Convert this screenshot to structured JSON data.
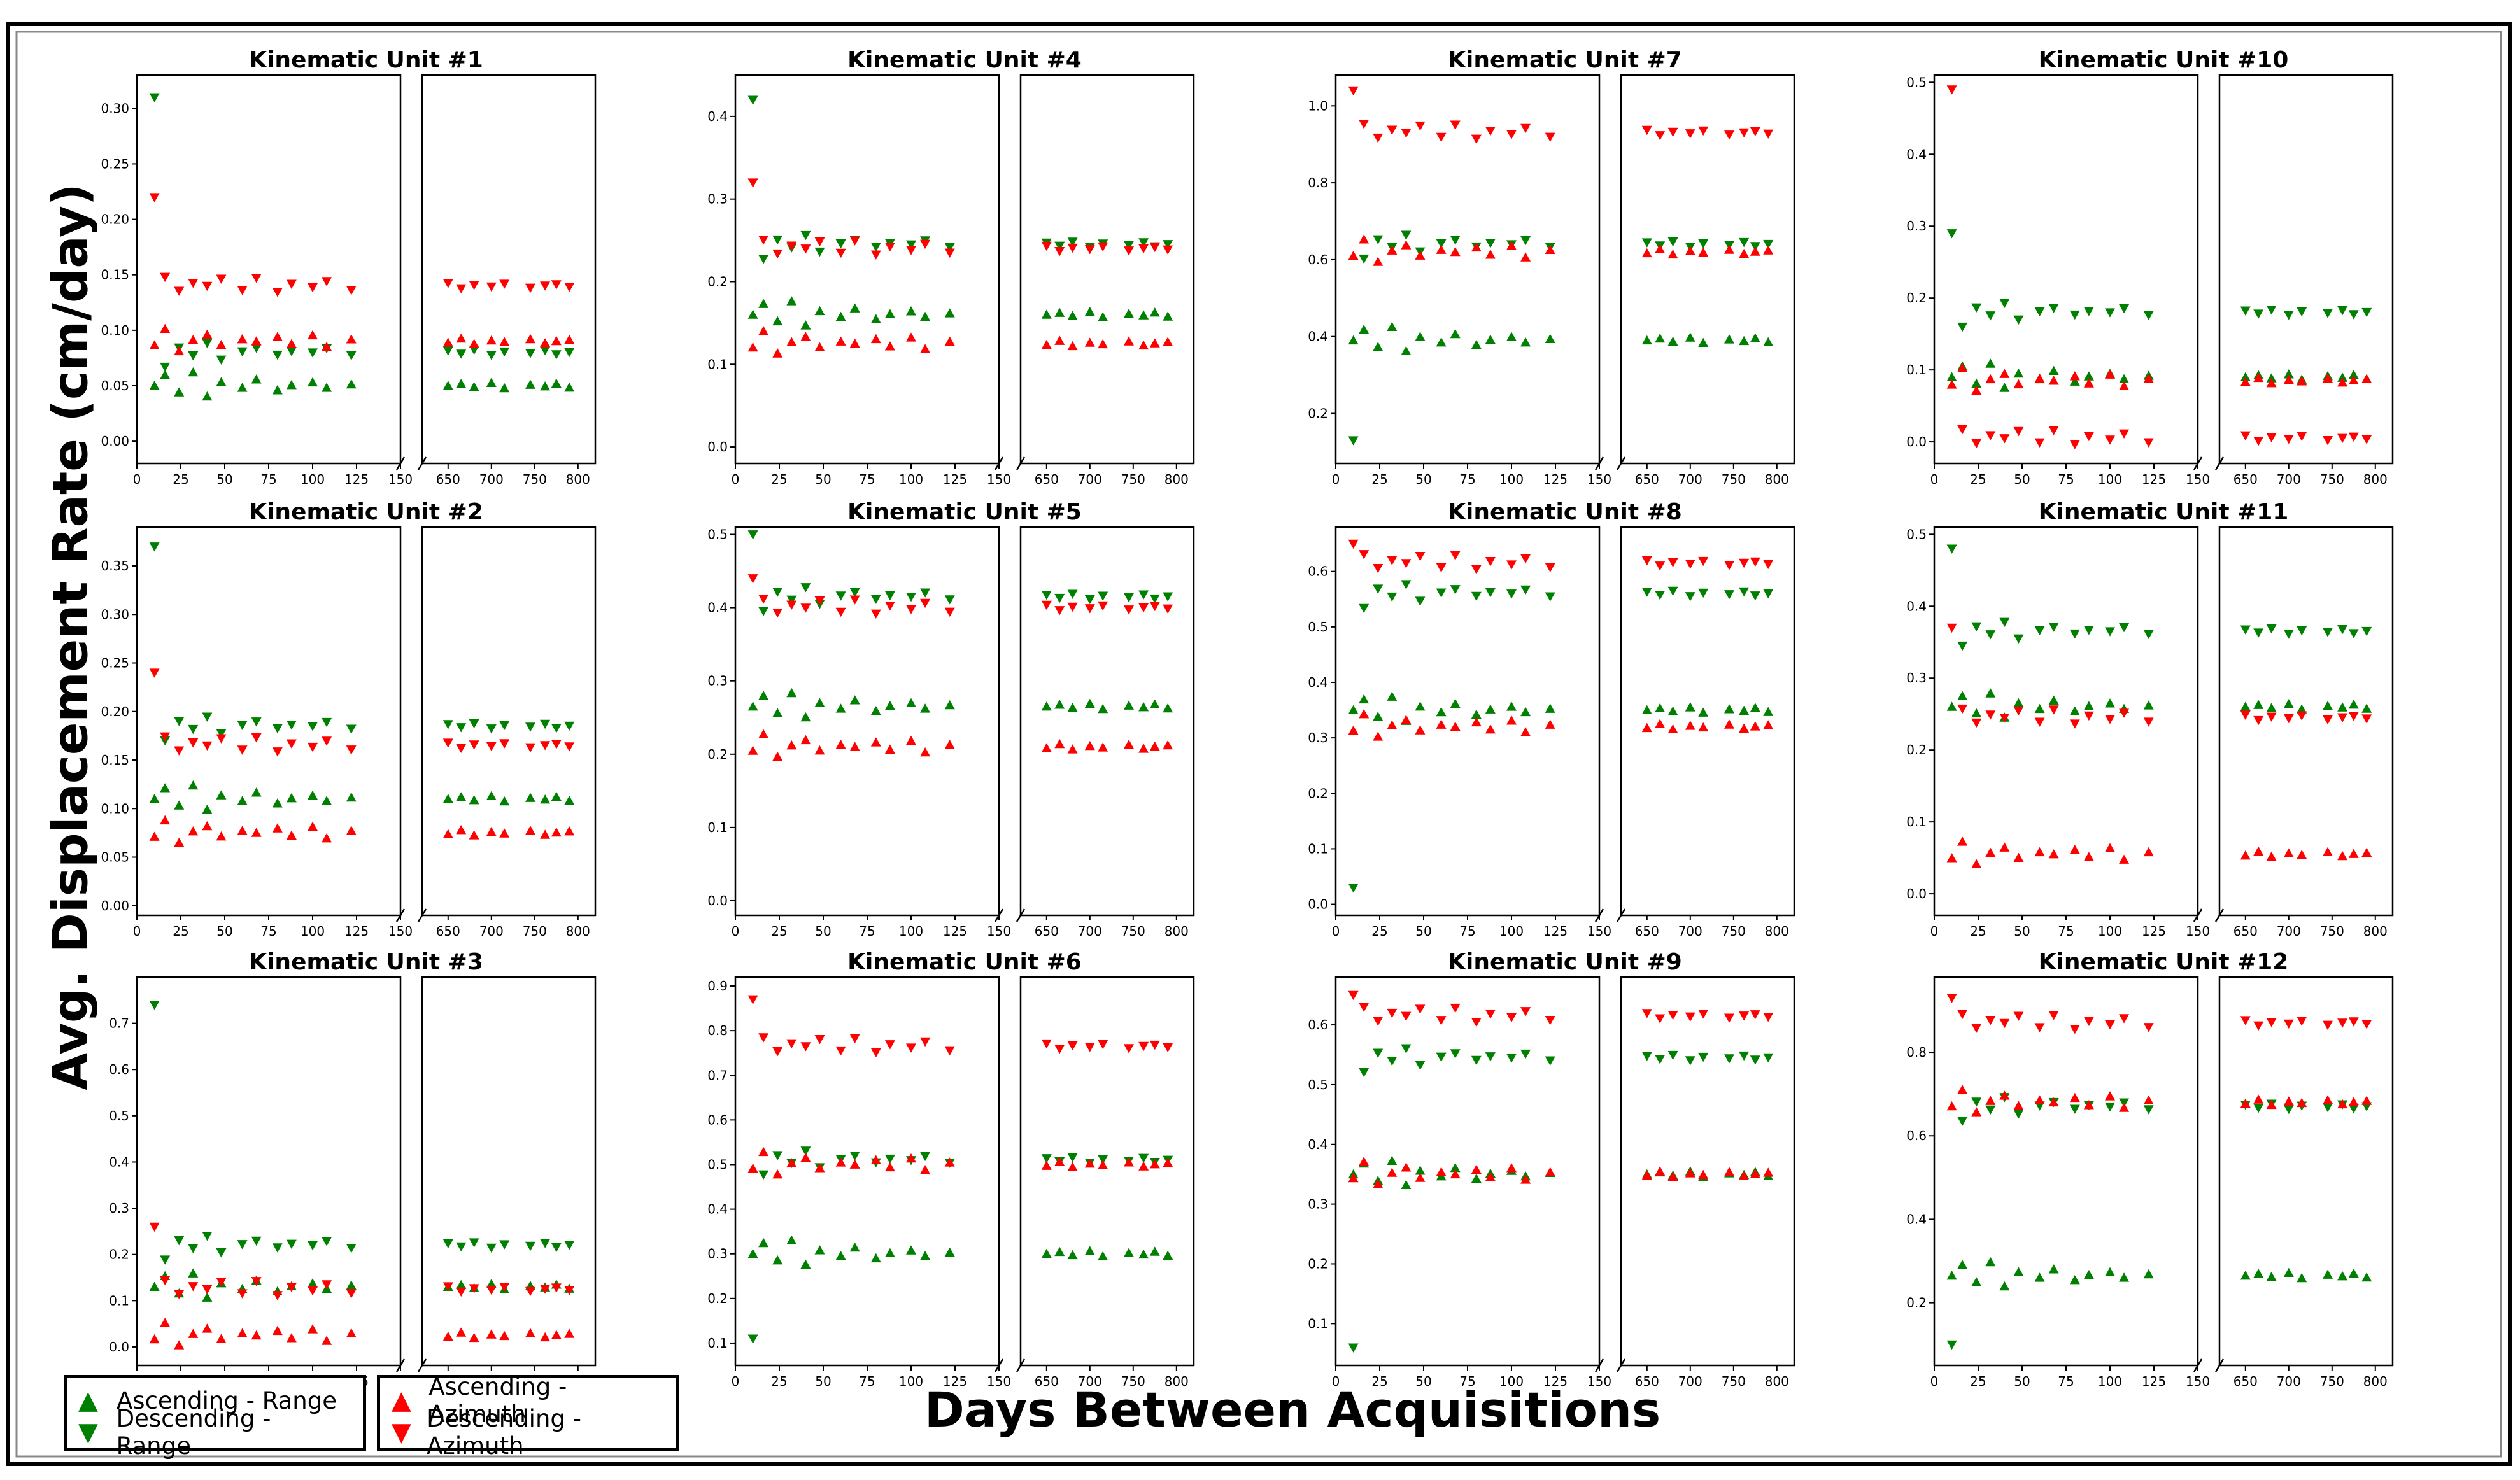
{
  "y_axis_title": "Avg. Displacement Rate (cm/day)",
  "x_axis_title": "Days Between Acquisitions",
  "colors": {
    "ascending_range": "#008000",
    "descending_range": "#008000",
    "ascending_azimuth": "#ff0000",
    "descending_azimuth": "#ff0000"
  },
  "legend": [
    {
      "label": "Ascending - Range",
      "symbol": "▲",
      "color": "#008000"
    },
    {
      "label": "Descending - Range",
      "symbol": "▼",
      "color": "#008000"
    },
    {
      "label": "Ascending - Azimuth",
      "symbol": "▲",
      "color": "#ff0000"
    },
    {
      "label": "Descending - Azimuth",
      "symbol": "▼",
      "color": "#ff0000"
    }
  ],
  "chart_data": [
    {
      "type": "scatter",
      "title": "Kinematic Unit #1",
      "x_ticks_left": [
        "0",
        "25",
        "50",
        "75",
        "100",
        "125",
        "150"
      ],
      "x_ticks_right": [
        "650",
        "700",
        "750",
        "800"
      ],
      "xlim_left": [
        0,
        150
      ],
      "xlim_right": [
        620,
        820
      ],
      "ylim": [
        -0.02,
        0.33
      ],
      "y_ticks": [
        "0.00",
        "0.05",
        "0.10",
        "0.15",
        "0.20",
        "0.25",
        "0.30"
      ],
      "levels": {
        "asc_range": 0.05,
        "desc_range": 0.08,
        "asc_azimuth": 0.09,
        "desc_azimuth": 0.14
      },
      "spikes": {
        "desc_range": 0.31,
        "desc_azimuth": 0.22
      }
    },
    {
      "type": "scatter",
      "title": "Kinematic Unit #4",
      "x_ticks_left": [
        "0",
        "25",
        "50",
        "75",
        "100",
        "125",
        "150"
      ],
      "x_ticks_right": [
        "650",
        "700",
        "750",
        "800"
      ],
      "xlim_left": [
        0,
        150
      ],
      "xlim_right": [
        620,
        820
      ],
      "ylim": [
        -0.02,
        0.45
      ],
      "y_ticks": [
        "0.0",
        "0.1",
        "0.2",
        "0.3",
        "0.4"
      ],
      "levels": {
        "asc_range": 0.16,
        "desc_range": 0.245,
        "asc_azimuth": 0.125,
        "desc_azimuth": 0.24
      },
      "spikes": {
        "desc_range": 0.42,
        "desc_azimuth": 0.32
      }
    },
    {
      "type": "scatter",
      "title": "Kinematic Unit #7",
      "x_ticks_left": [
        "0",
        "25",
        "50",
        "75",
        "100",
        "125",
        "150"
      ],
      "x_ticks_right": [
        "650",
        "700",
        "750",
        "800"
      ],
      "xlim_left": [
        0,
        150
      ],
      "xlim_right": [
        620,
        820
      ],
      "ylim": [
        0.07,
        1.08
      ],
      "y_ticks": [
        "0.2",
        "0.4",
        "0.6",
        "0.8",
        "1.0"
      ],
      "levels": {
        "asc_range": 0.39,
        "desc_range": 0.64,
        "asc_azimuth": 0.62,
        "desc_azimuth": 0.93
      },
      "spikes": {
        "desc_range": 0.13,
        "desc_azimuth": 1.04
      }
    },
    {
      "type": "scatter",
      "title": "Kinematic Unit #10",
      "x_ticks_left": [
        "0",
        "25",
        "50",
        "75",
        "100",
        "125",
        "150"
      ],
      "x_ticks_right": [
        "650",
        "700",
        "750",
        "800"
      ],
      "xlim_left": [
        0,
        150
      ],
      "xlim_right": [
        620,
        820
      ],
      "ylim": [
        -0.03,
        0.51
      ],
      "y_ticks": [
        "0.0",
        "0.1",
        "0.2",
        "0.3",
        "0.4",
        "0.5"
      ],
      "levels": {
        "asc_range": 0.09,
        "desc_range": 0.18,
        "asc_azimuth": 0.085,
        "desc_azimuth": 0.005
      },
      "spikes": {
        "desc_range": 0.29,
        "desc_azimuth": 0.49
      }
    },
    {
      "type": "scatter",
      "title": "Kinematic Unit #2",
      "x_ticks_left": [
        "0",
        "25",
        "50",
        "75",
        "100",
        "125",
        "150"
      ],
      "x_ticks_right": [
        "650",
        "700",
        "750",
        "800"
      ],
      "xlim_left": [
        0,
        150
      ],
      "xlim_right": [
        620,
        820
      ],
      "ylim": [
        -0.01,
        0.39
      ],
      "y_ticks": [
        "0.00",
        "0.05",
        "0.10",
        "0.15",
        "0.20",
        "0.25",
        "0.30",
        "0.35"
      ],
      "levels": {
        "asc_range": 0.11,
        "desc_range": 0.185,
        "asc_azimuth": 0.075,
        "desc_azimuth": 0.165
      },
      "spikes": {
        "desc_range": 0.37,
        "desc_azimuth": 0.24
      }
    },
    {
      "type": "scatter",
      "title": "Kinematic Unit #5",
      "x_ticks_left": [
        "0",
        "25",
        "50",
        "75",
        "100",
        "125",
        "150"
      ],
      "x_ticks_right": [
        "650",
        "700",
        "750",
        "800"
      ],
      "xlim_left": [
        0,
        150
      ],
      "xlim_right": [
        620,
        820
      ],
      "ylim": [
        -0.02,
        0.51
      ],
      "y_ticks": [
        "0.0",
        "0.1",
        "0.2",
        "0.3",
        "0.4",
        "0.5"
      ],
      "levels": {
        "asc_range": 0.265,
        "desc_range": 0.415,
        "asc_azimuth": 0.21,
        "desc_azimuth": 0.4
      },
      "spikes": {
        "desc_range": 0.5,
        "desc_azimuth": 0.44
      }
    },
    {
      "type": "scatter",
      "title": "Kinematic Unit #8",
      "x_ticks_left": [
        "0",
        "25",
        "50",
        "75",
        "100",
        "125",
        "150"
      ],
      "x_ticks_right": [
        "650",
        "700",
        "750",
        "800"
      ],
      "xlim_left": [
        0,
        150
      ],
      "xlim_right": [
        620,
        820
      ],
      "ylim": [
        -0.02,
        0.68
      ],
      "y_ticks": [
        "0.0",
        "0.1",
        "0.2",
        "0.3",
        "0.4",
        "0.5",
        "0.6"
      ],
      "levels": {
        "asc_range": 0.35,
        "desc_range": 0.56,
        "asc_azimuth": 0.32,
        "desc_azimuth": 0.615
      },
      "spikes": {
        "desc_range": 0.03,
        "desc_azimuth": 0.65
      }
    },
    {
      "type": "scatter",
      "title": "Kinematic Unit #11",
      "x_ticks_left": [
        "0",
        "25",
        "50",
        "75",
        "100",
        "125",
        "150"
      ],
      "x_ticks_right": [
        "650",
        "700",
        "750",
        "800"
      ],
      "xlim_left": [
        0,
        150
      ],
      "xlim_right": [
        620,
        820
      ],
      "ylim": [
        -0.03,
        0.51
      ],
      "y_ticks": [
        "0.0",
        "0.1",
        "0.2",
        "0.3",
        "0.4",
        "0.5"
      ],
      "levels": {
        "asc_range": 0.26,
        "desc_range": 0.365,
        "asc_azimuth": 0.055,
        "desc_azimuth": 0.245
      },
      "spikes": {
        "desc_range": 0.48,
        "desc_azimuth": 0.37
      }
    },
    {
      "type": "scatter",
      "title": "Kinematic Unit #3",
      "x_ticks_left": [
        "0",
        "25",
        "50",
        "75",
        "100",
        "125",
        "150"
      ],
      "x_ticks_right": [
        "650",
        "700",
        "750",
        "800"
      ],
      "xlim_left": [
        0,
        150
      ],
      "xlim_right": [
        620,
        820
      ],
      "ylim": [
        -0.04,
        0.8
      ],
      "y_ticks": [
        "0.0",
        "0.1",
        "0.2",
        "0.3",
        "0.4",
        "0.5",
        "0.6",
        "0.7"
      ],
      "levels": {
        "asc_range": 0.13,
        "desc_range": 0.22,
        "asc_azimuth": 0.025,
        "desc_azimuth": 0.125
      },
      "spikes": {
        "desc_range": 0.74,
        "desc_azimuth": 0.26
      }
    },
    {
      "type": "scatter",
      "title": "Kinematic Unit #6",
      "x_ticks_left": [
        "0",
        "25",
        "50",
        "75",
        "100",
        "125",
        "150"
      ],
      "x_ticks_right": [
        "650",
        "700",
        "750",
        "800"
      ],
      "xlim_left": [
        0,
        150
      ],
      "xlim_right": [
        620,
        820
      ],
      "ylim": [
        0.05,
        0.92
      ],
      "y_ticks": [
        "0.1",
        "0.2",
        "0.3",
        "0.4",
        "0.5",
        "0.6",
        "0.7",
        "0.8",
        "0.9"
      ],
      "levels": {
        "asc_range": 0.3,
        "desc_range": 0.51,
        "asc_azimuth": 0.5,
        "desc_azimuth": 0.765
      },
      "spikes": {
        "desc_range": 0.11,
        "desc_azimuth": 0.87
      }
    },
    {
      "type": "scatter",
      "title": "Kinematic Unit #9",
      "x_ticks_left": [
        "0",
        "25",
        "50",
        "75",
        "100",
        "125",
        "150"
      ],
      "x_ticks_right": [
        "650",
        "700",
        "750",
        "800"
      ],
      "xlim_left": [
        0,
        150
      ],
      "xlim_right": [
        620,
        820
      ],
      "ylim": [
        0.03,
        0.68
      ],
      "y_ticks": [
        "0.1",
        "0.2",
        "0.3",
        "0.4",
        "0.5",
        "0.6"
      ],
      "levels": {
        "asc_range": 0.35,
        "desc_range": 0.545,
        "asc_azimuth": 0.35,
        "desc_azimuth": 0.615
      },
      "spikes": {
        "desc_range": 0.06,
        "desc_azimuth": 0.65
      }
    },
    {
      "type": "scatter",
      "title": "Kinematic Unit #12",
      "x_ticks_left": [
        "0",
        "25",
        "50",
        "75",
        "100",
        "125",
        "150"
      ],
      "x_ticks_right": [
        "650",
        "700",
        "750",
        "800"
      ],
      "xlim_left": [
        0,
        150
      ],
      "xlim_right": [
        620,
        820
      ],
      "ylim": [
        0.05,
        0.98
      ],
      "y_ticks": [
        "0.2",
        "0.4",
        "0.6",
        "0.8"
      ],
      "levels": {
        "asc_range": 0.265,
        "desc_range": 0.67,
        "asc_azimuth": 0.68,
        "desc_azimuth": 0.87
      },
      "spikes": {
        "desc_range": 0.1,
        "desc_azimuth": 0.93
      }
    }
  ]
}
